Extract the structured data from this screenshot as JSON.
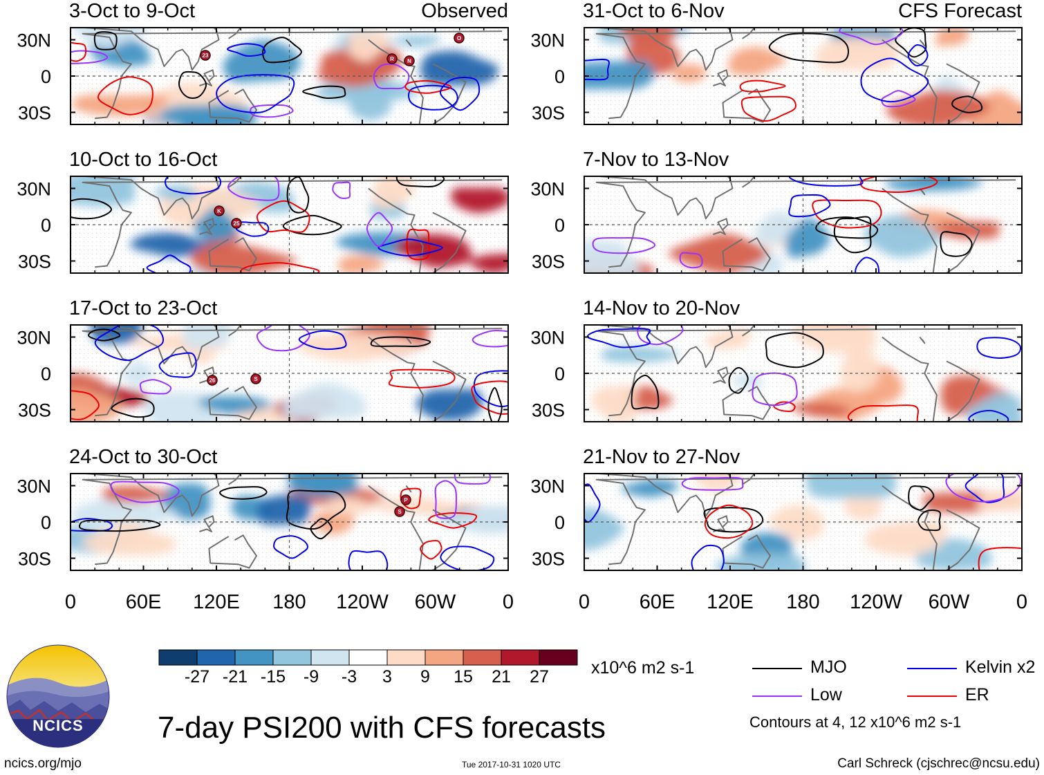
{
  "columns": [
    {
      "heading": "Observed"
    },
    {
      "heading": "CFS Forecast"
    }
  ],
  "panels": [
    {
      "col": 0,
      "row": 0,
      "period": "3-Oct to 9-Oct"
    },
    {
      "col": 0,
      "row": 1,
      "period": "10-Oct to 16-Oct"
    },
    {
      "col": 0,
      "row": 2,
      "period": "17-Oct to 23-Oct"
    },
    {
      "col": 0,
      "row": 3,
      "period": "24-Oct to 30-Oct"
    },
    {
      "col": 1,
      "row": 0,
      "period": "31-Oct to 6-Nov"
    },
    {
      "col": 1,
      "row": 1,
      "period": "7-Nov to 13-Nov"
    },
    {
      "col": 1,
      "row": 2,
      "period": "14-Nov to 20-Nov"
    },
    {
      "col": 1,
      "row": 3,
      "period": "21-Nov to 27-Nov"
    }
  ],
  "lat_labels": [
    "30N",
    "0",
    "30S"
  ],
  "lon_labels": [
    "0",
    "60E",
    "120E",
    "180",
    "120W",
    "60W",
    "0"
  ],
  "tc_markers": [
    {
      "panel": 0,
      "label": "23"
    },
    {
      "panel": 0,
      "label": "R"
    },
    {
      "panel": 0,
      "label": "N"
    },
    {
      "panel": 0,
      "label": "O"
    },
    {
      "panel": 1,
      "label": "K"
    },
    {
      "panel": 1,
      "label": "25"
    },
    {
      "panel": 2,
      "label": "26"
    },
    {
      "panel": 2,
      "label": "S"
    },
    {
      "panel": 3,
      "label": "P"
    },
    {
      "panel": 3,
      "label": "S"
    }
  ],
  "colorbar": {
    "labels": [
      "-27",
      "-21",
      "-15",
      "-9",
      "-3",
      "3",
      "9",
      "15",
      "21",
      "27"
    ],
    "colors": [
      "#0f3d6e",
      "#2166ac",
      "#4393c3",
      "#92c5de",
      "#d1e5f0",
      "#ffffff",
      "#fddbc7",
      "#f4a582",
      "#d6604d",
      "#b2182b",
      "#67001f"
    ],
    "units": "x10^6 m2 s-1"
  },
  "legend": [
    {
      "label": "MJO",
      "color": "#000000"
    },
    {
      "label": "Kelvin x2",
      "color": "#0000ee"
    },
    {
      "label": "Low",
      "color": "#9932ff"
    },
    {
      "label": "ER",
      "color": "#ee0000"
    }
  ],
  "contour_note": "Contours at 4, 12 x10^6 m2 s-1",
  "title": "7-day PSI200 with CFS forecasts",
  "logo_text": "NCICS",
  "footer": {
    "left": "ncics.org/mjo",
    "center": "Tue 2017-10-31 1020 UTC",
    "right": "Carl Schreck (cjschrec@ncsu.edu)"
  }
}
